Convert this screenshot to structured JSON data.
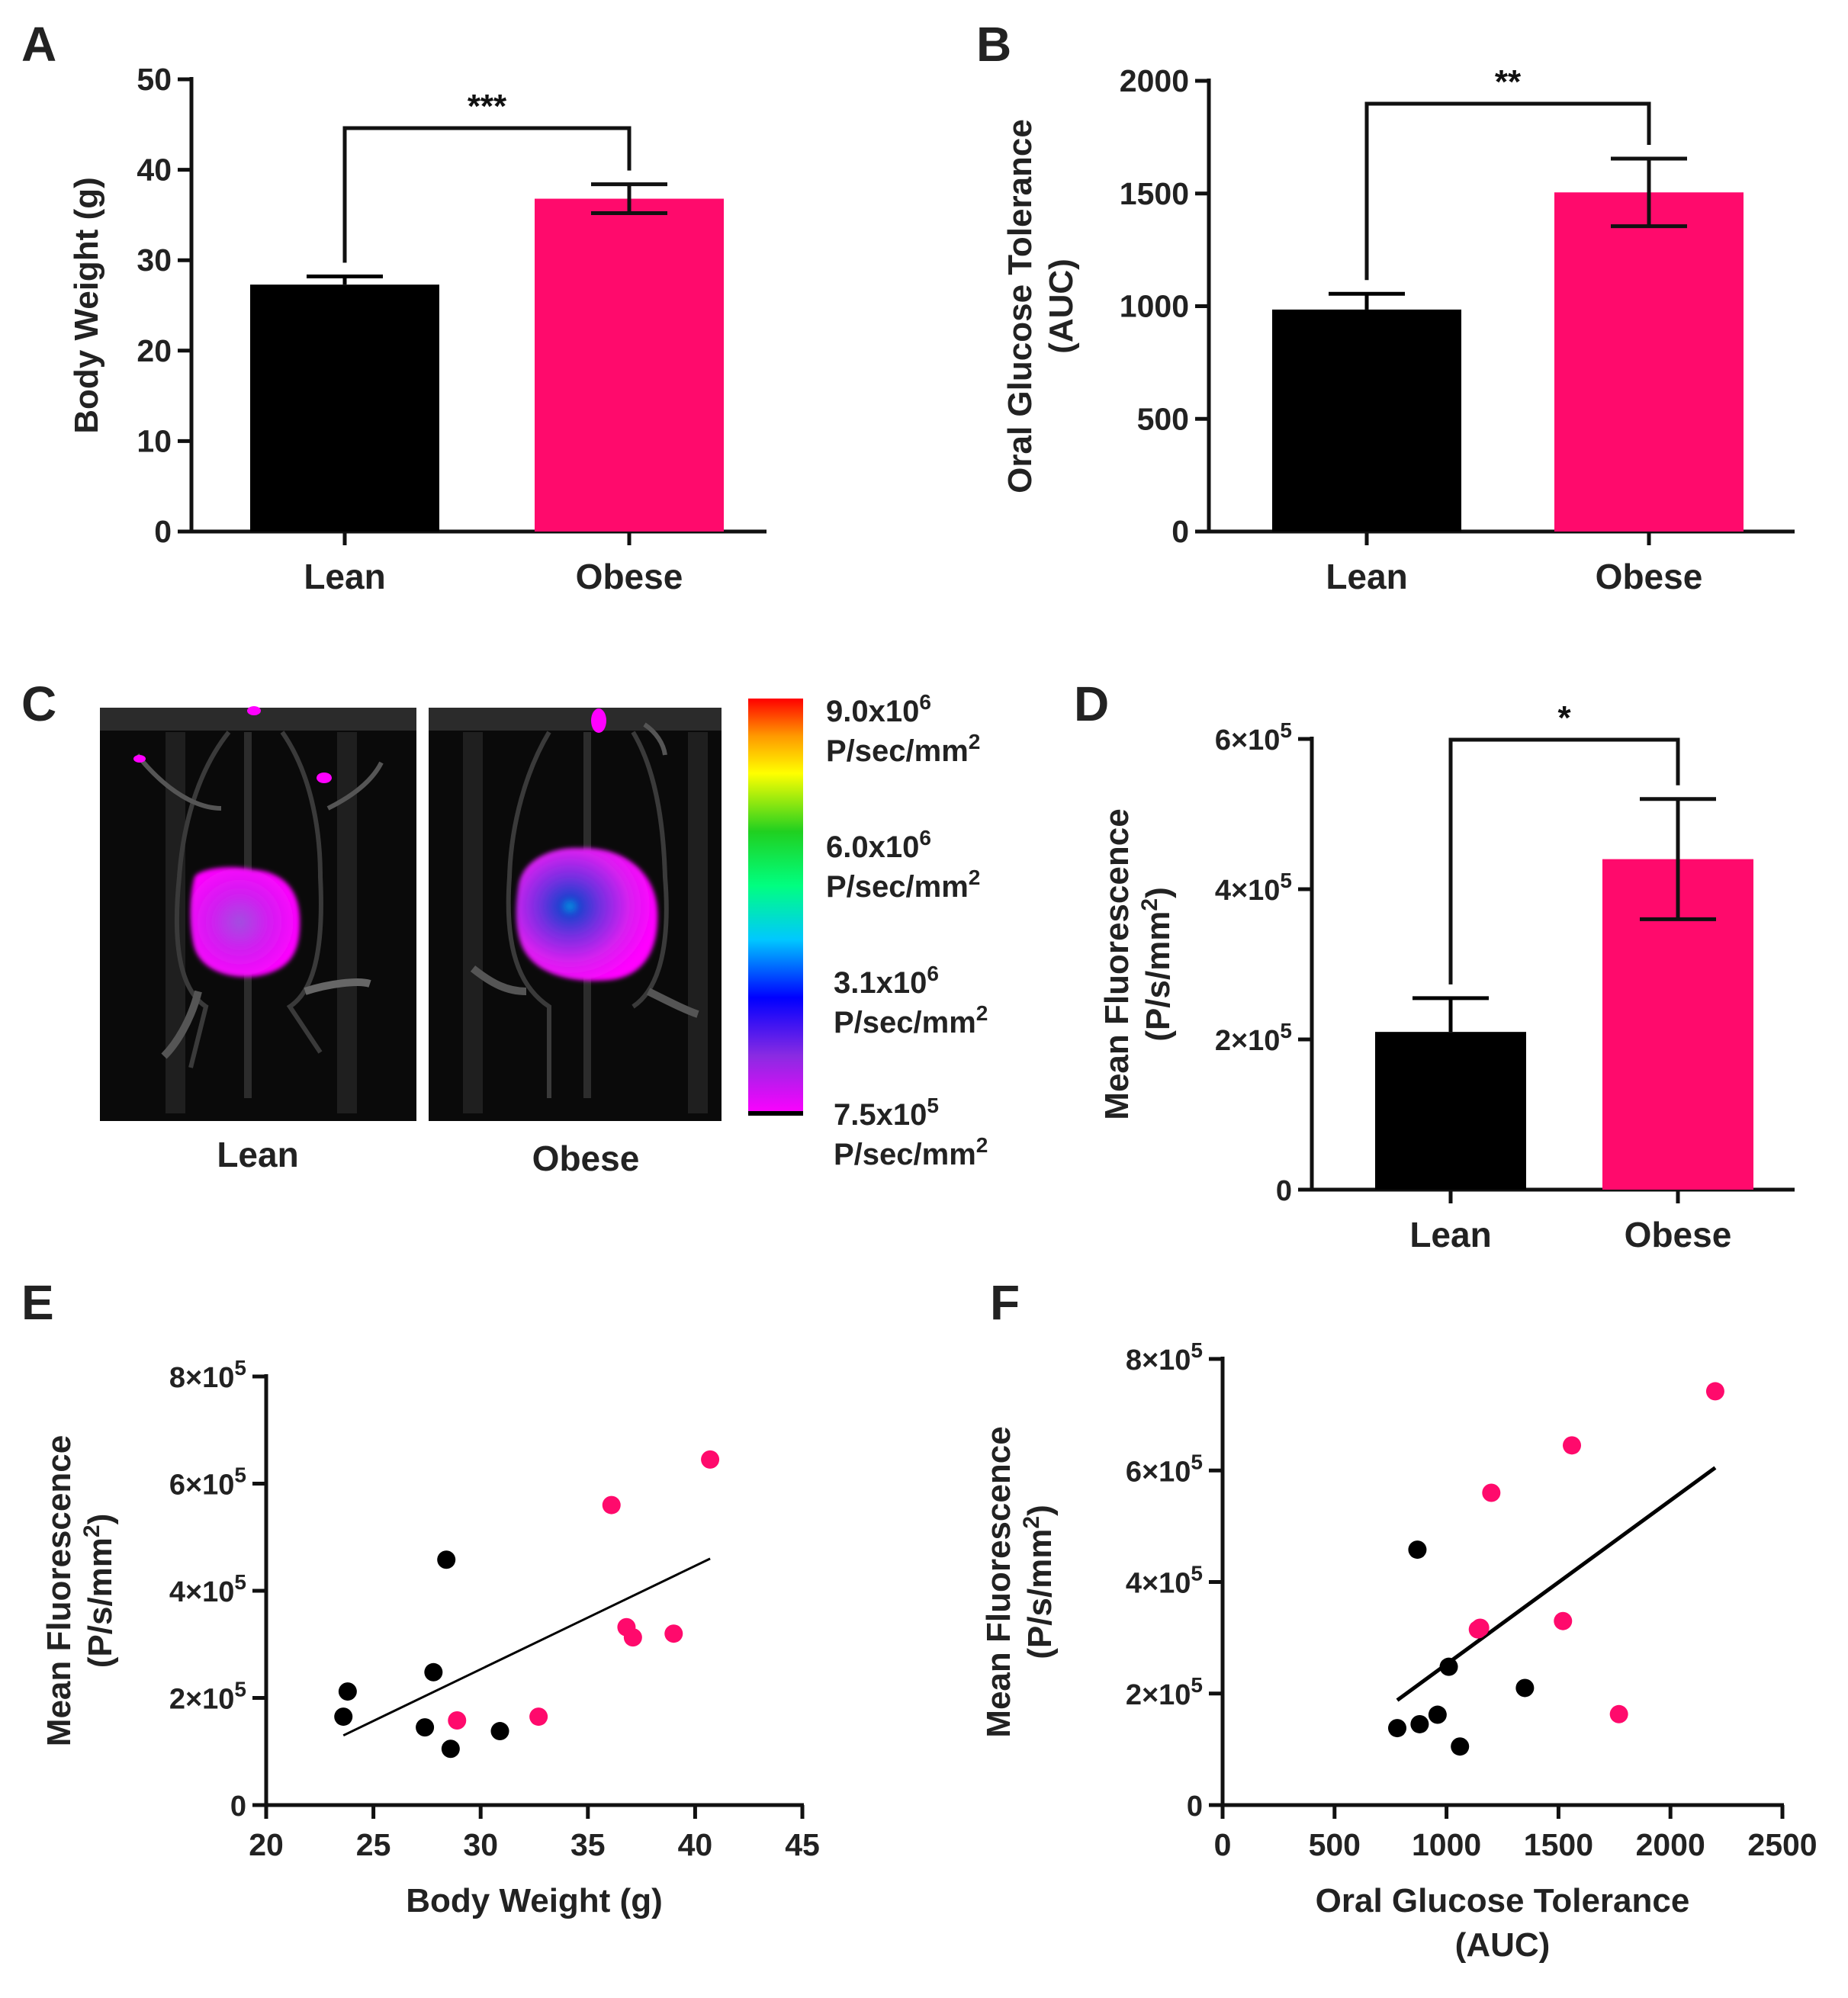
{
  "colors": {
    "lean": "#000000",
    "obese": "#ff0a6c",
    "axis": "#111111"
  },
  "chart_data": [
    {
      "panel": "A",
      "type": "bar",
      "categories": [
        "Lean",
        "Obese"
      ],
      "values": [
        27.3,
        36.8
      ],
      "errors": [
        0.9,
        1.6
      ],
      "ylabel": "Body Weight (g)",
      "ylim": [
        0,
        50
      ],
      "yticks": [
        0,
        10,
        20,
        30,
        40,
        50
      ],
      "significance": "***"
    },
    {
      "panel": "B",
      "type": "bar",
      "categories": [
        "Lean",
        "Obese"
      ],
      "values": [
        985,
        1505
      ],
      "errors": [
        70,
        150
      ],
      "ylabel": [
        "Oral Glucose Tolerance",
        "(AUC)"
      ],
      "ylim": [
        0,
        2000
      ],
      "yticks": [
        0,
        500,
        1000,
        1500,
        2000
      ],
      "significance": "**"
    },
    {
      "panel": "C",
      "type": "image",
      "image_labels": [
        "Lean",
        "Obese"
      ],
      "colorbar": [
        {
          "value": "9.0x10",
          "exp": "6",
          "unit": "P/sec/mm",
          "unit_exp": "2"
        },
        {
          "value": "6.0x10",
          "exp": "6",
          "unit": "P/sec/mm",
          "unit_exp": "2"
        },
        {
          "value": "3.1x10",
          "exp": "6",
          "unit": "P/sec/mm",
          "unit_exp": "2"
        },
        {
          "value": "7.5x10",
          "exp": "5",
          "unit": "P/sec/mm",
          "unit_exp": "2"
        }
      ]
    },
    {
      "panel": "D",
      "type": "bar",
      "categories": [
        "Lean",
        "Obese"
      ],
      "values": [
        210000,
        440000
      ],
      "errors": [
        45000,
        80000
      ],
      "ylabel": [
        "Mean Fluorescence",
        "(P/s/mm",
        "2",
        ")"
      ],
      "ylim": [
        0,
        600000
      ],
      "yticks": [
        {
          "v": 0,
          "m": "0",
          "e": ""
        },
        {
          "v": 200000,
          "m": "2×10",
          "e": "5"
        },
        {
          "v": 400000,
          "m": "4×10",
          "e": "5"
        },
        {
          "v": 600000,
          "m": "6×10",
          "e": "5"
        }
      ],
      "significance": "*"
    },
    {
      "panel": "E",
      "type": "scatter",
      "xlabel": "Body Weight (g)",
      "ylabel": [
        "Mean Fluorescence",
        "(P/s/mm",
        "2",
        ")"
      ],
      "xlim": [
        20,
        45
      ],
      "ylim": [
        0,
        800000
      ],
      "xticks": [
        20,
        25,
        30,
        35,
        40,
        45
      ],
      "yticks": [
        {
          "v": 0,
          "m": "0",
          "e": ""
        },
        {
          "v": 200000,
          "m": "2×10",
          "e": "5"
        },
        {
          "v": 400000,
          "m": "4×10",
          "e": "5"
        },
        {
          "v": 600000,
          "m": "6×10",
          "e": "5"
        },
        {
          "v": 800000,
          "m": "8×10",
          "e": "5"
        }
      ],
      "series": [
        {
          "group": "Lean",
          "points": [
            [
              23.6,
              165000
            ],
            [
              23.8,
              212000
            ],
            [
              27.4,
              145000
            ],
            [
              27.8,
              248000
            ],
            [
              28.4,
              458000
            ],
            [
              28.6,
              105000
            ],
            [
              30.9,
              138000
            ]
          ]
        },
        {
          "group": "Obese",
          "points": [
            [
              28.9,
              158000
            ],
            [
              32.7,
              165000
            ],
            [
              36.1,
              560000
            ],
            [
              36.8,
              332000
            ],
            [
              37.1,
              313000
            ],
            [
              39.0,
              320000
            ],
            [
              40.7,
              645000
            ]
          ]
        }
      ],
      "fit": [
        [
          23.6,
          130000
        ],
        [
          40.7,
          460000
        ]
      ]
    },
    {
      "panel": "F",
      "type": "scatter",
      "xlabel": [
        "Oral Glucose Tolerance",
        "(AUC)"
      ],
      "ylabel": [
        "Mean Fluorescence",
        "(P/s/mm",
        "2",
        ")"
      ],
      "xlim": [
        0,
        2500
      ],
      "ylim": [
        0,
        800000
      ],
      "xticks": [
        0,
        500,
        1000,
        1500,
        2000,
        2500
      ],
      "yticks": [
        {
          "v": 0,
          "m": "0",
          "e": ""
        },
        {
          "v": 200000,
          "m": "2×10",
          "e": "5"
        },
        {
          "v": 400000,
          "m": "4×10",
          "e": "5"
        },
        {
          "v": 600000,
          "m": "6×10",
          "e": "5"
        },
        {
          "v": 800000,
          "m": "8×10",
          "e": "5"
        }
      ],
      "series": [
        {
          "group": "Lean",
          "points": [
            [
              780,
              138000
            ],
            [
              880,
              145000
            ],
            [
              960,
              162000
            ],
            [
              1010,
              248000
            ],
            [
              1060,
              105000
            ],
            [
              1350,
              210000
            ],
            [
              870,
              458000
            ]
          ]
        },
        {
          "group": "Obese",
          "points": [
            [
              1140,
              315000
            ],
            [
              1150,
              318000
            ],
            [
              1200,
              560000
            ],
            [
              1520,
              330000
            ],
            [
              1560,
              645000
            ],
            [
              1770,
              163000
            ],
            [
              2200,
              742000
            ]
          ]
        }
      ],
      "fit": [
        [
          780,
          188000
        ],
        [
          2200,
          605000
        ]
      ]
    }
  ]
}
